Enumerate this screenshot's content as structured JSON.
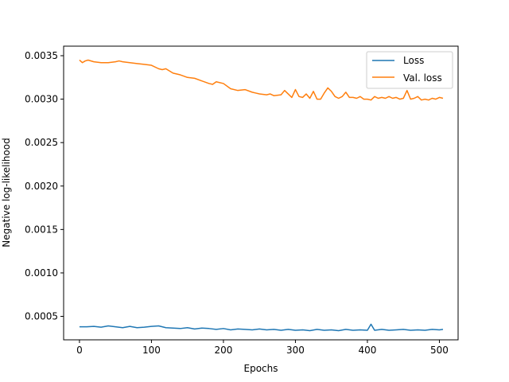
{
  "chart_data": {
    "type": "line",
    "title": "",
    "xlabel": "Epochs",
    "ylabel": "Negative log-likelihood",
    "xlim": [
      -22,
      526
    ],
    "ylim": [
      0.00023,
      0.00361
    ],
    "xticks": [
      0,
      100,
      200,
      300,
      400,
      500
    ],
    "xtick_labels": [
      "0",
      "100",
      "200",
      "300",
      "400",
      "500"
    ],
    "yticks": [
      0.0005,
      0.001,
      0.0015,
      0.002,
      0.0025,
      0.003,
      0.0035
    ],
    "ytick_labels": [
      "0.0005",
      "0.0010",
      "0.0015",
      "0.0020",
      "0.0025",
      "0.0030",
      "0.0035"
    ],
    "grid": false,
    "legend_position": "top-right",
    "series": [
      {
        "name": "Loss",
        "color": "#1f77b4",
        "x": [
          0,
          10,
          20,
          30,
          40,
          50,
          60,
          70,
          80,
          90,
          100,
          110,
          120,
          130,
          140,
          150,
          160,
          170,
          180,
          190,
          200,
          210,
          220,
          230,
          240,
          250,
          260,
          270,
          280,
          290,
          300,
          310,
          320,
          330,
          340,
          350,
          360,
          370,
          380,
          390,
          400,
          405,
          410,
          420,
          430,
          440,
          450,
          460,
          470,
          480,
          490,
          500,
          505
        ],
        "values": [
          0.00038,
          0.00038,
          0.000385,
          0.000375,
          0.00039,
          0.00038,
          0.00037,
          0.000385,
          0.00037,
          0.000375,
          0.000385,
          0.00039,
          0.00037,
          0.000365,
          0.00036,
          0.00037,
          0.000355,
          0.000365,
          0.00036,
          0.00035,
          0.00036,
          0.000345,
          0.000355,
          0.00035,
          0.000345,
          0.000355,
          0.000345,
          0.00035,
          0.00034,
          0.00035,
          0.00034,
          0.000345,
          0.000335,
          0.00035,
          0.00034,
          0.000345,
          0.000335,
          0.00035,
          0.00034,
          0.000345,
          0.00034,
          0.00041,
          0.00034,
          0.00035,
          0.00034,
          0.000345,
          0.00035,
          0.00034,
          0.000345,
          0.00034,
          0.00035,
          0.000345,
          0.00035
        ]
      },
      {
        "name": "Val. loss",
        "color": "#ff7f0e",
        "x": [
          0,
          4,
          8,
          12,
          20,
          30,
          40,
          50,
          55,
          60,
          70,
          80,
          90,
          100,
          110,
          115,
          120,
          130,
          140,
          150,
          160,
          170,
          180,
          185,
          190,
          200,
          210,
          220,
          230,
          240,
          245,
          250,
          260,
          265,
          270,
          280,
          285,
          290,
          295,
          300,
          305,
          310,
          315,
          320,
          325,
          330,
          335,
          340,
          345,
          350,
          355,
          360,
          365,
          370,
          375,
          380,
          385,
          390,
          395,
          400,
          405,
          410,
          415,
          420,
          425,
          430,
          435,
          440,
          445,
          450,
          455,
          460,
          465,
          470,
          475,
          480,
          485,
          490,
          495,
          500,
          505
        ],
        "values": [
          0.00345,
          0.00342,
          0.00344,
          0.00345,
          0.00343,
          0.00342,
          0.00342,
          0.00343,
          0.00344,
          0.00343,
          0.00342,
          0.00341,
          0.0034,
          0.00339,
          0.00335,
          0.00334,
          0.00335,
          0.0033,
          0.00328,
          0.00325,
          0.00324,
          0.00321,
          0.00318,
          0.00317,
          0.0032,
          0.00318,
          0.00312,
          0.0031,
          0.00311,
          0.00308,
          0.00307,
          0.00306,
          0.00305,
          0.00306,
          0.00304,
          0.00305,
          0.0031,
          0.00306,
          0.00302,
          0.00311,
          0.00303,
          0.00302,
          0.00306,
          0.00301,
          0.00309,
          0.003,
          0.003,
          0.00307,
          0.00313,
          0.00309,
          0.00303,
          0.00301,
          0.00303,
          0.00308,
          0.00302,
          0.00302,
          0.00301,
          0.00303,
          0.003,
          0.003,
          0.00299,
          0.00303,
          0.00301,
          0.00302,
          0.00301,
          0.00303,
          0.00301,
          0.00302,
          0.003,
          0.00301,
          0.0031,
          0.003,
          0.00301,
          0.00303,
          0.00299,
          0.003,
          0.00299,
          0.00301,
          0.003,
          0.00302,
          0.00301
        ]
      }
    ]
  }
}
